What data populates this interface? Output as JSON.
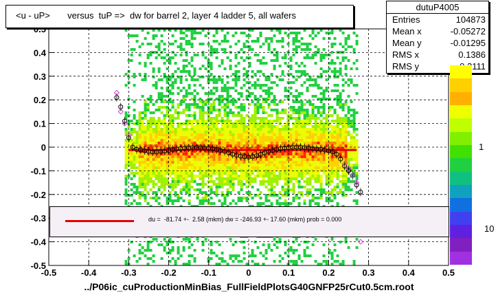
{
  "title": "<u - uP>       versus  tuP =>  dw for barrel 2, layer 4 ladder 5, all wafers",
  "stats": {
    "name": "dutuP4005",
    "rows": [
      {
        "label": "Entries",
        "value": "104873"
      },
      {
        "label": "Mean x",
        "value": "-0.05272"
      },
      {
        "label": "Mean y",
        "value": "-0.01295"
      },
      {
        "label": "RMS x",
        "value": "0.1386"
      },
      {
        "label": "RMS y",
        "value": "0.2111"
      }
    ]
  },
  "fit_text": "du =  -81.74 +-  2.58 (mkm) dw = -246.93 +- 17.60 (mkm) prob = 0.000",
  "footer": "../P06ic_cuProductionMinBias_FullFieldPlotsG40GNFP25rCut0.5cm.root",
  "palette_labels": [
    "1",
    "10"
  ],
  "colors": {
    "fit": "#e00000",
    "profile_black": "#000000",
    "profile_magenta": "#d040d0"
  },
  "chart_data": {
    "type": "heatmap",
    "xlim": [
      -0.5,
      0.5
    ],
    "ylim": [
      -0.5,
      0.5
    ],
    "x_ticks": [
      "-0.5",
      "-0.4",
      "-0.3",
      "-0.2",
      "-0.1",
      "0",
      "0.1",
      "0.2",
      "0.3",
      "0.4",
      "0.5"
    ],
    "y_ticks": [
      "-0.5",
      "-0.4",
      "-0.3",
      "-0.2",
      "-0.1",
      "0",
      "0.1",
      "0.2",
      "0.3",
      "0.4",
      "0.5"
    ],
    "grid": true,
    "band": {
      "xmin": -0.31,
      "xmax": 0.27,
      "core_y": -0.01,
      "core_width": 0.04
    },
    "fit_line": {
      "x": [
        -0.3,
        0.27
      ],
      "y": [
        -0.012,
        -0.012
      ]
    },
    "profile_black": {
      "x": [
        -0.33,
        -0.32,
        -0.31,
        -0.3,
        -0.29,
        -0.28,
        -0.27,
        -0.26,
        -0.25,
        -0.24,
        -0.23,
        -0.22,
        -0.21,
        -0.2,
        -0.19,
        -0.18,
        -0.17,
        -0.16,
        -0.15,
        -0.14,
        -0.13,
        -0.12,
        -0.11,
        -0.1,
        -0.09,
        -0.08,
        -0.07,
        -0.06,
        -0.05,
        -0.04,
        -0.03,
        -0.02,
        -0.01,
        0.0,
        0.01,
        0.02,
        0.03,
        0.04,
        0.05,
        0.06,
        0.07,
        0.08,
        0.09,
        0.1,
        0.11,
        0.12,
        0.13,
        0.14,
        0.15,
        0.16,
        0.17,
        0.18,
        0.19,
        0.2,
        0.21,
        0.22,
        0.23,
        0.24,
        0.25,
        0.26,
        0.27,
        0.28
      ],
      "y": [
        0.21,
        0.17,
        0.11,
        0.04,
        0.0,
        -0.01,
        -0.012,
        -0.015,
        -0.018,
        -0.02,
        -0.02,
        -0.018,
        -0.016,
        -0.014,
        -0.01,
        -0.008,
        -0.006,
        -0.004,
        -0.003,
        -0.002,
        -0.002,
        -0.003,
        -0.004,
        -0.005,
        -0.007,
        -0.01,
        -0.014,
        -0.018,
        -0.024,
        -0.03,
        -0.034,
        -0.038,
        -0.04,
        -0.042,
        -0.04,
        -0.036,
        -0.03,
        -0.024,
        -0.018,
        -0.014,
        -0.01,
        -0.006,
        -0.004,
        -0.002,
        0.0,
        0.0,
        0.0,
        -0.002,
        -0.004,
        -0.006,
        -0.008,
        -0.01,
        -0.012,
        -0.015,
        -0.02,
        -0.03,
        -0.05,
        -0.08,
        -0.1,
        -0.12,
        -0.16,
        -0.19
      ]
    },
    "profile_magenta": {
      "x": [
        -0.33,
        -0.32,
        -0.31,
        -0.3,
        0.24,
        0.25,
        0.26,
        0.27,
        0.28
      ],
      "y": [
        0.23,
        0.15,
        0.1,
        0.05,
        -0.07,
        -0.09,
        -0.12,
        -0.15,
        -0.4
      ]
    }
  }
}
